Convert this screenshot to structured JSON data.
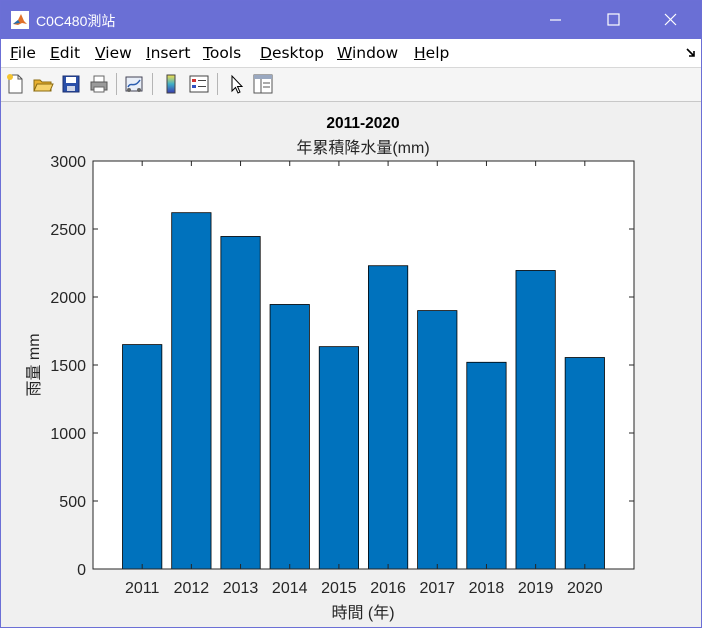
{
  "window": {
    "title": "C0C480測站",
    "menu": [
      "File",
      "Edit",
      "View",
      "Insert",
      "Tools",
      "Desktop",
      "Window",
      "Help"
    ],
    "menu_mnemonic_rest": [
      "ile",
      "dit",
      "iew",
      "nsert",
      "ools",
      "esktop",
      "indow",
      "elp"
    ],
    "menu_mnemonic_first": [
      "F",
      "E",
      "V",
      "I",
      "T",
      "D",
      "W",
      "H"
    ],
    "colors": {
      "titlebar": "#6a6fd5",
      "bar": "#0072bd"
    },
    "icons": {
      "app": "matlab-logo-icon",
      "minimize": "minimize-icon",
      "maximize": "maximize-icon",
      "close": "close-icon",
      "dock": "dock-arrow-icon"
    },
    "toolbar": [
      "new-figure-icon",
      "open-file-icon",
      "save-icon",
      "print-icon",
      "link-plot-icon",
      "insert-colorbar-icon",
      "insert-legend-icon",
      "edit-plot-icon",
      "property-inspector-icon"
    ]
  },
  "chart_data": {
    "type": "bar",
    "title": "2011-2020",
    "subtitle": "年累積降水量(mm)",
    "xlabel": "時間 (年)",
    "ylabel": "雨量 mm",
    "categories": [
      "2011",
      "2012",
      "2013",
      "2014",
      "2015",
      "2016",
      "2017",
      "2018",
      "2019",
      "2020"
    ],
    "values": [
      1650,
      2620,
      2445,
      1945,
      1635,
      2230,
      1900,
      1520,
      2195,
      1555
    ],
    "ylim": [
      0,
      3000
    ],
    "yticks": [
      "0",
      "500",
      "1000",
      "1500",
      "2000",
      "2500",
      "3000"
    ],
    "grid": false,
    "bar_color": "#0072bd"
  }
}
